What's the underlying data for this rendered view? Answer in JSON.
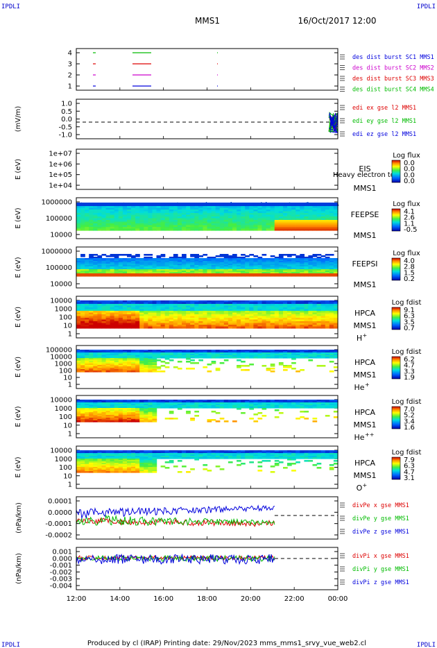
{
  "corners": {
    "tl": "IPDLI",
    "tr": "IPDLI",
    "bl": "IPDLI",
    "br": "IPDLI"
  },
  "header": {
    "mission": "MMS1",
    "date": "16/Oct/2017 12:00"
  },
  "footer": "Produced by cl (IRAP)   Printing date: 29/Nov/2023   mms_mms1_srvy_vue_web2.cl",
  "colors": {
    "red": "#dd0000",
    "green": "#00bb00",
    "blue": "#0000dd",
    "magenta": "#cc00cc"
  },
  "chart_data": {
    "type": "line",
    "x_ticks": [
      "12:00",
      "14:00",
      "16:00",
      "18:00",
      "20:00",
      "22:00",
      "00:00"
    ],
    "panels": [
      {
        "id": "burst",
        "yticks": [
          "4",
          "3",
          "2",
          "1"
        ],
        "legend": [
          "des dist burst SC1 MMS1",
          "des dist burst SC2 MMS2",
          "des dist burst SC3 MMS3",
          "des dist burst SC4 MMS4"
        ],
        "legend_colors": [
          "#0000dd",
          "#cc00cc",
          "#dd0000",
          "#00bb00"
        ]
      },
      {
        "id": "edi",
        "ylabel": "(mV/m)",
        "yticks": [
          "1.0",
          "0.5",
          "0.0",
          "-0.5",
          "-1.0"
        ],
        "legend": [
          "edi ex gse l2 MMS1",
          "edi ey gse l2 MMS1",
          "edi ez gse l2 MMS1"
        ],
        "legend_colors": [
          "#dd0000",
          "#00bb00",
          "#0000dd"
        ]
      },
      {
        "id": "eis",
        "ylabel": "E (eV)",
        "yticks": [
          "1e+07",
          "1e+06",
          "1e+05",
          "1e+04"
        ],
        "right_labels": [
          "EIS",
          "MMS1"
        ],
        "overlay": "Heavy electron to",
        "cbar_title": "Log flux",
        "cbar_ticks": [
          "0.0",
          "0.0",
          "0.0",
          "0.0"
        ]
      },
      {
        "id": "feepse",
        "ylabel": "E (eV)",
        "yticks": [
          "1000000",
          "100000",
          "10000"
        ],
        "right_labels": [
          "FEEPSE",
          "MMS1"
        ],
        "cbar_title": "Log flux",
        "cbar_ticks": [
          "4.1",
          "2.6",
          "1.1",
          "-0.5"
        ]
      },
      {
        "id": "feepsi",
        "ylabel": "E (eV)",
        "yticks": [
          "1000000",
          "100000",
          "10000"
        ],
        "right_labels": [
          "FEEPSI",
          "MMS1"
        ],
        "cbar_title": "Log flux",
        "cbar_ticks": [
          "4.0",
          "2.8",
          "1.5",
          "0.2"
        ]
      },
      {
        "id": "hpca_h",
        "ylabel": "E (eV)",
        "yticks": [
          "10000",
          "1000",
          "100",
          "10",
          "1"
        ],
        "right_labels": [
          "HPCA",
          "MMS1"
        ],
        "species": "H",
        "species_sup": "+",
        "cbar_title": "Log fdist",
        "cbar_ticks": [
          "9.1",
          "6.3",
          "3.5",
          "0.7"
        ]
      },
      {
        "id": "hpca_he",
        "ylabel": "E (eV)",
        "yticks": [
          "100000",
          "10000",
          "1000",
          "100",
          "10",
          "1"
        ],
        "right_labels": [
          "HPCA",
          "MMS1"
        ],
        "species": "He",
        "species_sup": "+",
        "cbar_title": "Log fdist",
        "cbar_ticks": [
          "6.2",
          "4.7",
          "3.3",
          "1.9"
        ]
      },
      {
        "id": "hpca_hepp",
        "ylabel": "E (eV)",
        "yticks": [
          "10000",
          "1000",
          "100",
          "10",
          "1"
        ],
        "right_labels": [
          "HPCA",
          "MMS1"
        ],
        "species": "He",
        "species_sup": "++",
        "cbar_title": "Log fdist",
        "cbar_ticks": [
          "7.0",
          "5.2",
          "3.4",
          "1.6"
        ]
      },
      {
        "id": "hpca_o",
        "ylabel": "E (eV)",
        "yticks": [
          "10000",
          "1000",
          "100",
          "10",
          "1"
        ],
        "right_labels": [
          "HPCA",
          "MMS1"
        ],
        "species": "O",
        "species_sup": "+",
        "cbar_title": "Log fdist",
        "cbar_ticks": [
          "7.9",
          "6.3",
          "4.7",
          "3.1"
        ]
      },
      {
        "id": "divpe",
        "ylabel": "(nPa/km)",
        "yticks": [
          "0.0001",
          "0.0000",
          "-0.0001",
          "-0.0002"
        ],
        "legend": [
          "divPe x gse MMS1",
          "divPe y gse MMS1",
          "divPe z gse MMS1"
        ],
        "legend_colors": [
          "#dd0000",
          "#00bb00",
          "#0000dd"
        ]
      },
      {
        "id": "divpi",
        "ylabel": "(nPa/km)",
        "yticks": [
          "0.001",
          "0.000",
          "-0.001",
          "-0.002",
          "-0.003",
          "-0.004"
        ],
        "legend": [
          "divPi x gse MMS1",
          "divPi y gse MMS1",
          "divPi z gse MMS1"
        ],
        "legend_colors": [
          "#dd0000",
          "#00bb00",
          "#0000dd"
        ]
      }
    ]
  }
}
